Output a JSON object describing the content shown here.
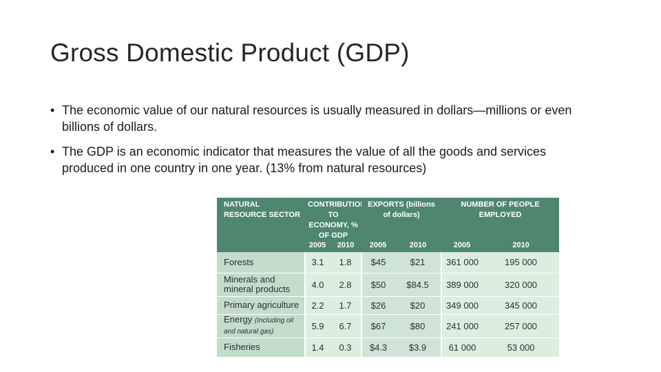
{
  "slide": {
    "title": "Gross Domestic Product (GDP)",
    "bullets": [
      "The economic value of our natural resources is usually measured in dollars—millions or even billions of dollars.",
      "The GDP is an economic indicator that measures the value of all the goods and services produced in one country in one year. (13% from natural resources)"
    ],
    "bullet_glyph": "•"
  },
  "table": {
    "headers": {
      "sector": "NATURAL RESOURCE SECTOR",
      "contribution": "CONTRIBUTION TO ECONOMY, % OF GDP",
      "exports": "EXPORTS (billions of dollars)",
      "employed": "NUMBER OF PEOPLE EMPLOYED"
    },
    "years": [
      "2005",
      "2010",
      "2005",
      "2010",
      "2005",
      "2010"
    ],
    "rows": [
      {
        "sector": "Forests",
        "note": "",
        "gdp_2005": "3.1",
        "gdp_2010": "1.8",
        "exp_2005": "$45",
        "exp_2010": "$21",
        "emp_2005": "361 000",
        "emp_2010": "195 000"
      },
      {
        "sector": "Minerals and mineral products",
        "note": "",
        "gdp_2005": "4.0",
        "gdp_2010": "2.8",
        "exp_2005": "$50",
        "exp_2010": "$84.5",
        "emp_2005": "389 000",
        "emp_2010": "320 000"
      },
      {
        "sector": "Primary agriculture",
        "note": "",
        "gdp_2005": "2.2",
        "gdp_2010": "1.7",
        "exp_2005": "$26",
        "exp_2010": "$20",
        "emp_2005": "349 000",
        "emp_2010": "345 000"
      },
      {
        "sector": "Energy",
        "note": "(Including oil and natural gas)",
        "gdp_2005": "5.9",
        "gdp_2010": "6.7",
        "exp_2005": "$67",
        "exp_2010": "$80",
        "emp_2005": "241 000",
        "emp_2010": "257 000"
      },
      {
        "sector": "Fisheries",
        "note": "",
        "gdp_2005": "1.4",
        "gdp_2010": "0.3",
        "exp_2005": "$4.3",
        "exp_2010": "$3.9",
        "emp_2005": "61 000",
        "emp_2010": "53 000"
      }
    ],
    "colors": {
      "header_bg": "#4e8670",
      "header_text": "#ffffff",
      "row_bg": "#cfe4d6"
    }
  }
}
